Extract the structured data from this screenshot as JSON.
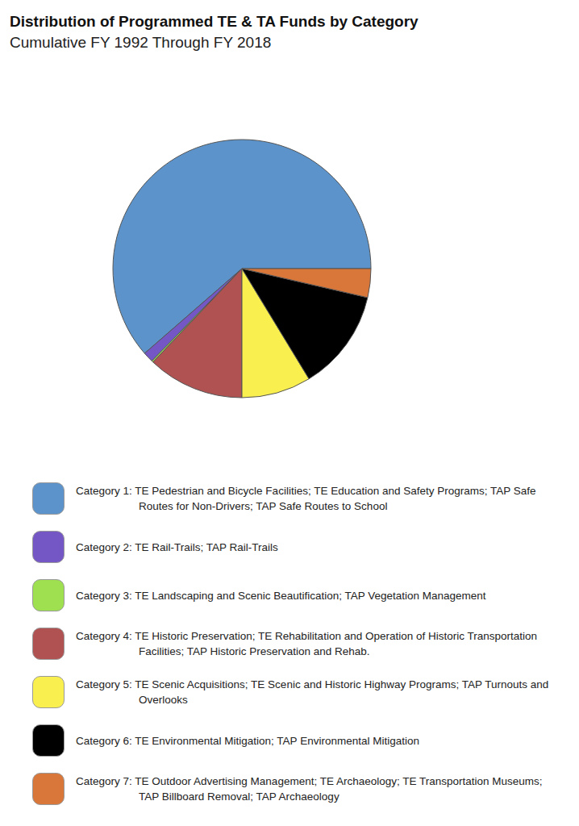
{
  "chart_data": {
    "type": "pie",
    "title": "Distribution of Programmed TE & TA Funds by Category",
    "subtitle": "Cumulative FY 1992 Through FY 2018",
    "categories": [
      "Category 1: TE Pedestrian and Bicycle Facilities; TE Education and Safety Programs; TAP Safe Routes for Non-Drivers; TAP Safe Routes to School",
      "Category 2: TE Rail-Trails; TAP Rail-Trails",
      "Category 3: TE Landscaping and Scenic Beautification; TAP Vegetation Management",
      "Category 4: TE Historic Preservation; TE Rehabilitation and Operation of Historic Transportation Facilities; TAP Historic Preservation and Rehab.",
      "Category 5: TE Scenic Acquisitions; TE Scenic and Historic Highway Programs; TAP Turnouts and Overlooks",
      "Category 6: TE Environmental Mitigation; TAP Environmental Mitigation",
      "Category 7: TE Outdoor Advertising Management; TE Archaeology; TE Transportation Museums; TAP Billboard Removal; TAP Archaeology"
    ],
    "values": [
      61.4,
      1.3,
      0.2,
      12.1,
      8.7,
      12.7,
      3.6
    ],
    "colors": [
      "#5b93ca",
      "#7457c4",
      "#9ee04f",
      "#b05252",
      "#f9ef4f",
      "#000000",
      "#d9773a"
    ],
    "legend": "bottom"
  }
}
